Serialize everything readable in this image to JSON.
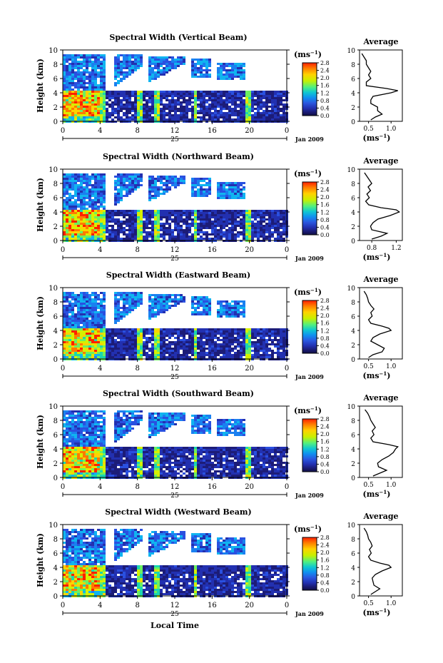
{
  "colorbar": {
    "unit_label": "(ms",
    "unit_exp": "−1",
    "ticks": [
      "2.8",
      "2.4",
      "2.0",
      "1.6",
      "1.2",
      "0.8",
      "0.4",
      "0.0"
    ],
    "colors": [
      "#ff2000",
      "#ff7a00",
      "#ffd200",
      "#d6f000",
      "#6cf060",
      "#1ad6b0",
      "#10b4f0",
      "#1a80f0",
      "#2a50e0",
      "#2230b0",
      "#1c1c78",
      "#111144"
    ]
  },
  "avg_ylabel_unit": "(ms",
  "avg_ylabel_exp": "−1",
  "x_date": "Jan 2009",
  "x_day": "25",
  "x_title": "Local Time",
  "chart_data": [
    {
      "type": "heatmap",
      "title": "Spectral Width (Vertical Beam)",
      "ylabel": "Height (km)",
      "xlabel": "Local Time",
      "x_ticks": [
        "0",
        "4",
        "8",
        "12",
        "16",
        "20",
        "0"
      ],
      "y_ticks": [
        "0",
        "2",
        "4",
        "6",
        "8",
        "10"
      ],
      "xlim": [
        0,
        24
      ],
      "ylim": [
        0,
        10
      ],
      "colorbar_range": [
        0.0,
        2.8
      ],
      "average_profile": {
        "title": "Average",
        "x_ticks": [
          "0.5",
          "1.0"
        ],
        "xlim": [
          0.3,
          1.25
        ],
        "heights": [
          0.2,
          0.6,
          1.0,
          1.5,
          2.0,
          2.5,
          3.0,
          3.5,
          4.0,
          4.3,
          4.6,
          5.0,
          5.5,
          6.0,
          6.5,
          7.0,
          7.5,
          8.0,
          8.5,
          9.0,
          9.5
        ],
        "values": [
          0.55,
          0.65,
          0.8,
          0.7,
          0.7,
          0.55,
          0.55,
          0.6,
          1.0,
          1.15,
          0.9,
          0.45,
          0.45,
          0.55,
          0.5,
          0.55,
          0.5,
          0.45,
          0.45,
          0.4,
          0.35
        ]
      }
    },
    {
      "type": "heatmap",
      "title": "Spectral Width (Northward Beam)",
      "ylabel": "Height (km)",
      "xlabel": "Local Time",
      "x_ticks": [
        "0",
        "4",
        "8",
        "12",
        "16",
        "20",
        "0"
      ],
      "y_ticks": [
        "0",
        "2",
        "4",
        "6",
        "8",
        "10"
      ],
      "xlim": [
        0,
        24
      ],
      "ylim": [
        0,
        10
      ],
      "colorbar_range": [
        0.0,
        2.8
      ],
      "average_profile": {
        "title": "Average",
        "x_ticks": [
          "0.8",
          "1.2"
        ],
        "xlim": [
          0.6,
          1.3
        ],
        "heights": [
          0.2,
          0.6,
          1.0,
          1.5,
          2.0,
          2.5,
          3.0,
          3.5,
          4.0,
          4.3,
          4.6,
          5.0,
          5.5,
          6.0,
          6.5,
          7.0,
          7.5,
          8.0,
          8.5,
          9.0,
          9.5
        ],
        "values": [
          0.8,
          0.95,
          1.05,
          0.8,
          0.78,
          0.82,
          0.9,
          1.1,
          1.25,
          1.2,
          0.95,
          0.75,
          0.7,
          0.76,
          0.72,
          0.78,
          0.74,
          0.8,
          0.76,
          0.72,
          0.68
        ]
      }
    },
    {
      "type": "heatmap",
      "title": "Spectral Width (Eastward Beam)",
      "ylabel": "Height (km)",
      "xlabel": "Local Time",
      "x_ticks": [
        "0",
        "4",
        "8",
        "12",
        "16",
        "20",
        "0"
      ],
      "y_ticks": [
        "0",
        "2",
        "4",
        "6",
        "8",
        "10"
      ],
      "xlim": [
        0,
        24
      ],
      "ylim": [
        0,
        10
      ],
      "colorbar_range": [
        0.0,
        2.8
      ],
      "average_profile": {
        "title": "Average",
        "x_ticks": [
          "0.5",
          "1.0"
        ],
        "xlim": [
          0.3,
          1.25
        ],
        "heights": [
          0.2,
          0.6,
          1.0,
          1.5,
          2.0,
          2.5,
          3.0,
          3.5,
          4.0,
          4.3,
          4.6,
          5.0,
          5.5,
          6.0,
          6.5,
          7.0,
          7.5,
          8.0,
          8.5,
          9.0,
          9.5
        ],
        "values": [
          0.5,
          0.6,
          0.8,
          0.85,
          0.7,
          0.55,
          0.6,
          0.75,
          1.0,
          0.95,
          0.8,
          0.55,
          0.5,
          0.58,
          0.55,
          0.62,
          0.55,
          0.5,
          0.48,
          0.45,
          0.4
        ]
      }
    },
    {
      "type": "heatmap",
      "title": "Spectral Width (Southward Beam)",
      "ylabel": "Height (km)",
      "xlabel": "Local Time",
      "x_ticks": [
        "0",
        "4",
        "8",
        "12",
        "16",
        "20",
        "0"
      ],
      "y_ticks": [
        "0",
        "2",
        "4",
        "6",
        "8",
        "10"
      ],
      "xlim": [
        0,
        24
      ],
      "ylim": [
        0,
        10
      ],
      "colorbar_range": [
        0.0,
        2.8
      ],
      "average_profile": {
        "title": "Average",
        "x_ticks": [
          "0.5",
          "1.0"
        ],
        "xlim": [
          0.3,
          1.25
        ],
        "heights": [
          0.2,
          0.6,
          1.0,
          1.5,
          2.0,
          2.5,
          3.0,
          3.5,
          4.0,
          4.3,
          4.6,
          5.0,
          5.5,
          6.0,
          6.5,
          7.0,
          7.5,
          8.0,
          8.5,
          9.0,
          9.5
        ],
        "values": [
          0.6,
          0.75,
          0.9,
          0.72,
          0.7,
          0.8,
          0.95,
          1.05,
          1.1,
          1.15,
          0.95,
          0.6,
          0.55,
          0.62,
          0.58,
          0.65,
          0.6,
          0.55,
          0.52,
          0.48,
          0.42
        ]
      }
    },
    {
      "type": "heatmap",
      "title": "Spectral Width (Westward Beam)",
      "ylabel": "Height (km)",
      "xlabel": "Local Time",
      "x_ticks": [
        "0",
        "4",
        "8",
        "12",
        "16",
        "20",
        "0"
      ],
      "y_ticks": [
        "0",
        "2",
        "4",
        "6",
        "8",
        "10"
      ],
      "xlim": [
        0,
        24
      ],
      "ylim": [
        0,
        10
      ],
      "colorbar_range": [
        0.0,
        2.8
      ],
      "average_profile": {
        "title": "Average",
        "x_ticks": [
          "0.5",
          "1.0"
        ],
        "xlim": [
          0.3,
          1.25
        ],
        "heights": [
          0.2,
          0.6,
          1.0,
          1.5,
          2.0,
          2.5,
          3.0,
          3.5,
          4.0,
          4.3,
          4.6,
          5.0,
          5.5,
          6.0,
          6.5,
          7.0,
          7.5,
          8.0,
          8.5,
          9.0,
          9.5
        ],
        "values": [
          0.55,
          0.65,
          0.75,
          0.62,
          0.6,
          0.58,
          0.65,
          0.8,
          1.0,
          0.95,
          0.75,
          0.55,
          0.5,
          0.56,
          0.52,
          0.58,
          0.55,
          0.5,
          0.48,
          0.45,
          0.4
        ]
      }
    }
  ]
}
